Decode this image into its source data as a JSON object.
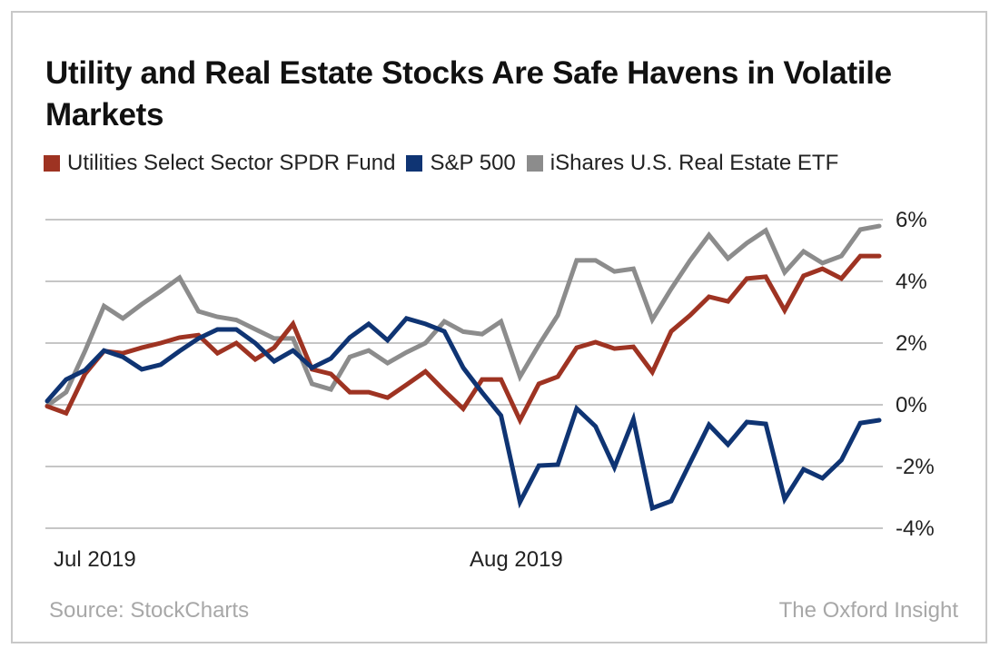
{
  "chart_data": {
    "type": "line",
    "title": "Utility and Real Estate Stocks Are Safe Havens in Volatile Markets",
    "x_tick_labels": [
      "Jul 2019",
      "Aug 2019"
    ],
    "x_tick_index": [
      0,
      22
    ],
    "y_ticks": [
      6,
      4,
      2,
      0,
      -2,
      -4
    ],
    "y_tick_labels": [
      "6%",
      "4%",
      "2%",
      "0%",
      "-2%",
      "-4%"
    ],
    "ylim": [
      -4,
      6
    ],
    "grid": true,
    "y_axis_side": "right",
    "legend_placement": "top",
    "series": [
      {
        "name": "Utilities Select Sector SPDR Fund",
        "color": "#9e3322",
        "values": [
          -0.05,
          -0.27,
          1.0,
          1.74,
          1.67,
          1.85,
          2.0,
          2.18,
          2.26,
          1.67,
          2.0,
          1.47,
          1.85,
          2.62,
          1.15,
          1.0,
          0.41,
          0.41,
          0.23,
          0.65,
          1.08,
          0.46,
          -0.13,
          0.82,
          0.82,
          -0.5,
          0.68,
          0.91,
          1.85,
          2.03,
          1.82,
          1.88,
          1.06,
          2.38,
          2.9,
          3.5,
          3.35,
          4.09,
          4.15,
          3.06,
          4.18,
          4.41,
          4.09,
          4.82,
          4.82
        ]
      },
      {
        "name": "S&P 500",
        "color": "#0f3473",
        "values": [
          0.12,
          0.82,
          1.12,
          1.76,
          1.55,
          1.15,
          1.3,
          1.74,
          2.15,
          2.44,
          2.44,
          2.0,
          1.41,
          1.76,
          1.2,
          1.5,
          2.18,
          2.62,
          2.09,
          2.8,
          2.62,
          2.38,
          1.2,
          0.4,
          -0.35,
          -3.15,
          -1.97,
          -1.94,
          -0.12,
          -0.7,
          -2.03,
          -0.47,
          -3.35,
          -3.12,
          -1.88,
          -0.65,
          -1.29,
          -0.56,
          -0.62,
          -3.06,
          -2.09,
          -2.38,
          -1.79,
          -0.59,
          -0.5
        ]
      },
      {
        "name": "iShares U.S. Real Estate ETF",
        "color": "#8c8c8c",
        "values": [
          -0.03,
          0.41,
          1.74,
          3.2,
          2.8,
          3.26,
          3.68,
          4.12,
          3.03,
          2.85,
          2.75,
          2.45,
          2.15,
          2.15,
          0.68,
          0.5,
          1.55,
          1.76,
          1.35,
          1.7,
          2.0,
          2.7,
          2.37,
          2.29,
          2.7,
          0.91,
          1.94,
          2.9,
          4.68,
          4.68,
          4.32,
          4.41,
          2.76,
          3.76,
          4.68,
          5.5,
          4.74,
          5.24,
          5.65,
          4.29,
          4.97,
          4.59,
          4.82,
          5.68,
          5.79
        ]
      }
    ]
  },
  "footer": {
    "source": "Source: StockCharts",
    "brand": "The Oxford Insight"
  }
}
